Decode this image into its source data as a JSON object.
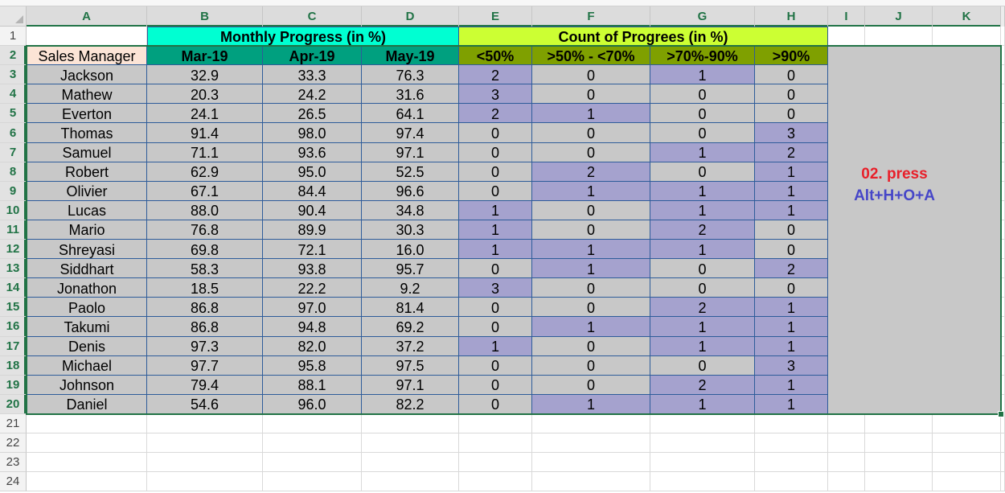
{
  "columns": [
    "A",
    "B",
    "C",
    "D",
    "E",
    "F",
    "G",
    "H",
    "I",
    "J",
    "K"
  ],
  "row_numbers": [
    "1",
    "2",
    "3",
    "4",
    "5",
    "6",
    "7",
    "8",
    "9",
    "10",
    "11",
    "12",
    "13",
    "14",
    "15",
    "16",
    "17",
    "18",
    "19",
    "20",
    "21",
    "22",
    "23",
    "24"
  ],
  "header_row1": {
    "monthly_title": "Monthly Progress (in %)",
    "count_title": "Count of Progrees (in %)"
  },
  "header_row2": {
    "name_label": "Sales Manager",
    "months": [
      "Mar-19",
      "Apr-19",
      "May-19"
    ],
    "bands": [
      "<50%",
      ">50% - <70%",
      ">70%-90%",
      ">90%"
    ]
  },
  "records": [
    {
      "name": "Jackson",
      "progress": [
        "32.9",
        "33.3",
        "76.3"
      ],
      "counts": [
        2,
        0,
        1,
        0
      ]
    },
    {
      "name": "Mathew",
      "progress": [
        "20.3",
        "24.2",
        "31.6"
      ],
      "counts": [
        3,
        0,
        0,
        0
      ]
    },
    {
      "name": "Everton",
      "progress": [
        "24.1",
        "26.5",
        "64.1"
      ],
      "counts": [
        2,
        1,
        0,
        0
      ]
    },
    {
      "name": "Thomas",
      "progress": [
        "91.4",
        "98.0",
        "97.4"
      ],
      "counts": [
        0,
        0,
        0,
        3
      ]
    },
    {
      "name": "Samuel",
      "progress": [
        "71.1",
        "93.6",
        "97.1"
      ],
      "counts": [
        0,
        0,
        1,
        2
      ]
    },
    {
      "name": "Robert",
      "progress": [
        "62.9",
        "95.0",
        "52.5"
      ],
      "counts": [
        0,
        2,
        0,
        1
      ]
    },
    {
      "name": "Olivier",
      "progress": [
        "67.1",
        "84.4",
        "96.6"
      ],
      "counts": [
        0,
        1,
        1,
        1
      ]
    },
    {
      "name": "Lucas",
      "progress": [
        "88.0",
        "90.4",
        "34.8"
      ],
      "counts": [
        1,
        0,
        1,
        1
      ]
    },
    {
      "name": "Mario",
      "progress": [
        "76.8",
        "89.9",
        "30.3"
      ],
      "counts": [
        1,
        0,
        2,
        0
      ]
    },
    {
      "name": "Shreyasi",
      "progress": [
        "69.8",
        "72.1",
        "16.0"
      ],
      "counts": [
        1,
        1,
        1,
        0
      ]
    },
    {
      "name": "Siddhart",
      "progress": [
        "58.3",
        "93.8",
        "95.7"
      ],
      "counts": [
        0,
        1,
        0,
        2
      ]
    },
    {
      "name": "Jonathon",
      "progress": [
        "18.5",
        "22.2",
        "9.2"
      ],
      "counts": [
        3,
        0,
        0,
        0
      ]
    },
    {
      "name": "Paolo",
      "progress": [
        "86.8",
        "97.0",
        "81.4"
      ],
      "counts": [
        0,
        0,
        2,
        1
      ]
    },
    {
      "name": "Takumi",
      "progress": [
        "86.8",
        "94.8",
        "69.2"
      ],
      "counts": [
        0,
        1,
        1,
        1
      ]
    },
    {
      "name": "Denis",
      "progress": [
        "97.3",
        "82.0",
        "37.2"
      ],
      "counts": [
        1,
        0,
        1,
        1
      ]
    },
    {
      "name": "Michael",
      "progress": [
        "97.7",
        "95.8",
        "97.5"
      ],
      "counts": [
        0,
        0,
        0,
        3
      ]
    },
    {
      "name": "Johnson",
      "progress": [
        "79.4",
        "88.1",
        "97.1"
      ],
      "counts": [
        0,
        0,
        2,
        1
      ]
    },
    {
      "name": "Daniel",
      "progress": [
        "54.6",
        "96.0",
        "82.2"
      ],
      "counts": [
        0,
        1,
        1,
        1
      ]
    }
  ],
  "annotation": {
    "step": "02. press",
    "keys": "Alt+H+O+A"
  },
  "colors": {
    "monthly_title_bg": "#00FFD2",
    "count_title_bg": "#CCFF33",
    "name_label_bg": "#FCE4D6",
    "month_header_bg": "#00A07F",
    "band_header_bg": "#7FA000",
    "body_fill": "#C8C8C8",
    "nonzero_count_fill": "#A5A2CE",
    "table_border": "#2E5C9A",
    "selection": "#217346",
    "header_text": "#217346",
    "annotation_step": "#E8202A",
    "annotation_keys": "#4646C8"
  }
}
